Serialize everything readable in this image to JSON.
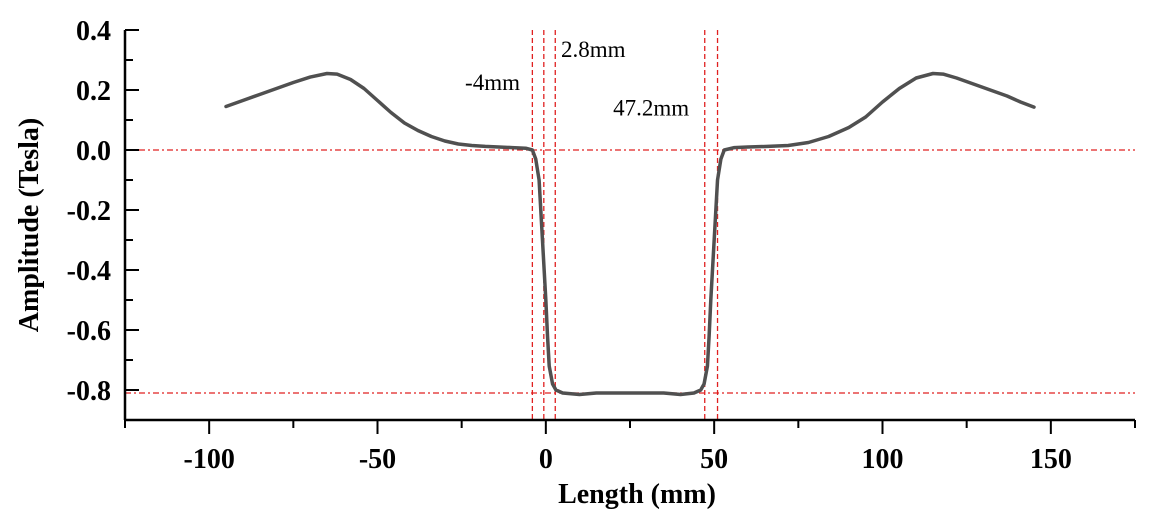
{
  "chart_data": {
    "type": "line",
    "title": "",
    "xlabel": "Length (mm)",
    "ylabel": "Amplitude (Tesla)",
    "xlim": [
      -125,
      175
    ],
    "ylim": [
      -0.9,
      0.4
    ],
    "x_ticks": [
      -100,
      -50,
      0,
      50,
      100,
      150
    ],
    "x_tick_labels": [
      "-100",
      "-50",
      "0",
      "50",
      "100",
      "150"
    ],
    "y_ticks": [
      0.4,
      0.2,
      0.0,
      -0.2,
      -0.4,
      -0.6,
      -0.8
    ],
    "y_tick_labels": [
      "0.4",
      "0.2",
      "0.0",
      "-0.2",
      "-0.4",
      "-0.6",
      "-0.8"
    ],
    "series": [
      {
        "name": "Amplitude",
        "color": "#505050",
        "points": [
          [
            -95,
            0.145
          ],
          [
            -90,
            0.165
          ],
          [
            -85,
            0.185
          ],
          [
            -80,
            0.205
          ],
          [
            -75,
            0.225
          ],
          [
            -70,
            0.243
          ],
          [
            -65,
            0.255
          ],
          [
            -62,
            0.253
          ],
          [
            -58,
            0.235
          ],
          [
            -54,
            0.205
          ],
          [
            -50,
            0.165
          ],
          [
            -46,
            0.125
          ],
          [
            -42,
            0.09
          ],
          [
            -38,
            0.065
          ],
          [
            -34,
            0.045
          ],
          [
            -30,
            0.03
          ],
          [
            -26,
            0.02
          ],
          [
            -22,
            0.015
          ],
          [
            -18,
            0.012
          ],
          [
            -14,
            0.01
          ],
          [
            -10,
            0.008
          ],
          [
            -6,
            0.006
          ],
          [
            -4,
            0.0
          ],
          [
            -3,
            -0.03
          ],
          [
            -2,
            -0.1
          ],
          [
            -1,
            -0.3
          ],
          [
            0,
            -0.5
          ],
          [
            0.5,
            -0.62
          ],
          [
            1,
            -0.72
          ],
          [
            2,
            -0.78
          ],
          [
            3,
            -0.8
          ],
          [
            5,
            -0.81
          ],
          [
            10,
            -0.815
          ],
          [
            15,
            -0.81
          ],
          [
            20,
            -0.81
          ],
          [
            25,
            -0.81
          ],
          [
            30,
            -0.81
          ],
          [
            35,
            -0.81
          ],
          [
            40,
            -0.815
          ],
          [
            44,
            -0.81
          ],
          [
            46,
            -0.8
          ],
          [
            47,
            -0.78
          ],
          [
            48,
            -0.72
          ],
          [
            48.5,
            -0.62
          ],
          [
            49,
            -0.5
          ],
          [
            50,
            -0.3
          ],
          [
            51,
            -0.1
          ],
          [
            52,
            -0.03
          ],
          [
            53,
            0.0
          ],
          [
            56,
            0.008
          ],
          [
            60,
            0.01
          ],
          [
            66,
            0.012
          ],
          [
            72,
            0.015
          ],
          [
            78,
            0.025
          ],
          [
            84,
            0.045
          ],
          [
            90,
            0.075
          ],
          [
            95,
            0.11
          ],
          [
            100,
            0.16
          ],
          [
            105,
            0.205
          ],
          [
            110,
            0.24
          ],
          [
            115,
            0.255
          ],
          [
            118,
            0.253
          ],
          [
            122,
            0.24
          ],
          [
            127,
            0.22
          ],
          [
            132,
            0.2
          ],
          [
            137,
            0.18
          ],
          [
            141,
            0.16
          ],
          [
            145,
            0.143
          ]
        ]
      }
    ],
    "reference_lines": {
      "horizontal": [
        0.0,
        -0.81
      ],
      "vertical": [
        -4,
        -0.6,
        2.8,
        47.2,
        51
      ]
    },
    "annotations": [
      {
        "text": "-4mm",
        "x": -24,
        "y": 0.2
      },
      {
        "text": "2.8mm",
        "x": 4.5,
        "y": 0.31
      },
      {
        "text": "47.2mm",
        "x": 20,
        "y": 0.115
      }
    ],
    "grid": false,
    "colors": {
      "line": "#505050",
      "reference": "#e02020",
      "axis": "#000000"
    }
  }
}
